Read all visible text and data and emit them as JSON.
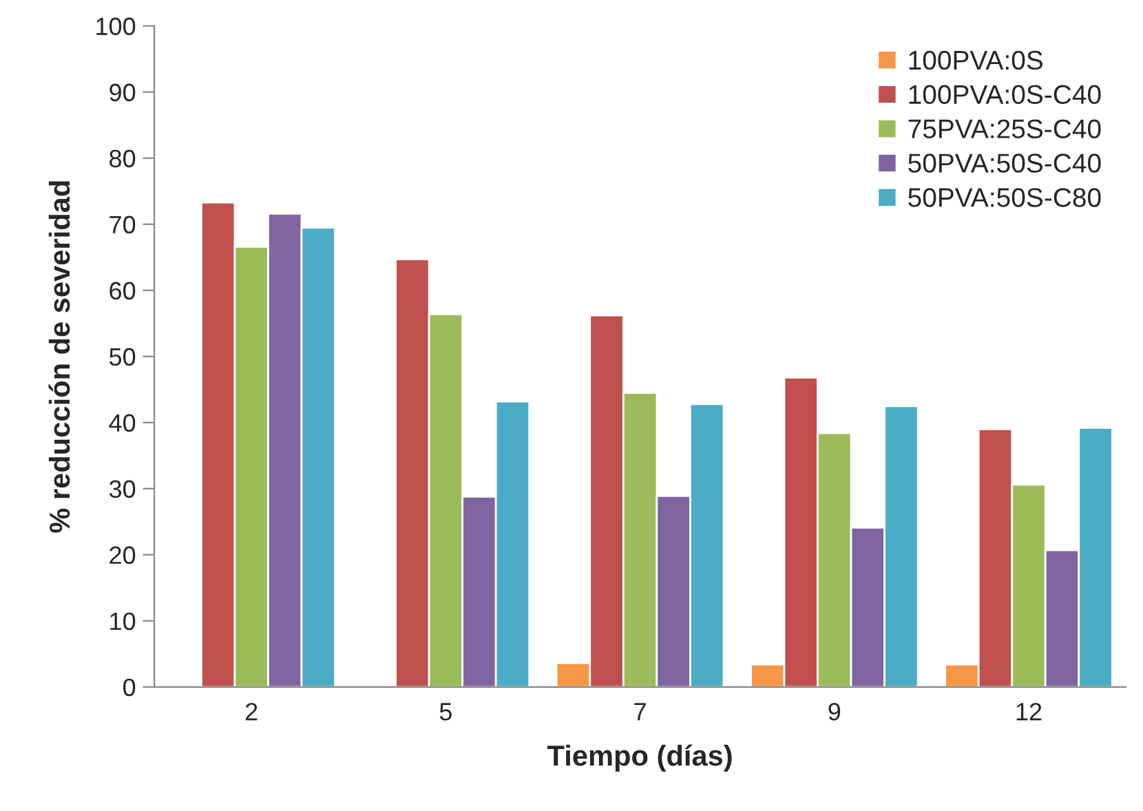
{
  "chart_data": {
    "type": "bar",
    "xlabel": "Tiempo (días)",
    "ylabel": "% reducción de severidad",
    "categories": [
      "2",
      "5",
      "7",
      "9",
      "12"
    ],
    "series": [
      {
        "name": "100PVA:0S",
        "color": "#f79646",
        "values": [
          null,
          null,
          3.6,
          3.4,
          3.4
        ]
      },
      {
        "name": "100PVA:0S-C40",
        "color": "#c0504d",
        "values": [
          73.3,
          64.7,
          56.2,
          46.8,
          39.0
        ]
      },
      {
        "name": "75PVA:25S-C40",
        "color": "#9bbb59",
        "values": [
          66.6,
          56.4,
          44.5,
          38.4,
          30.6
        ]
      },
      {
        "name": "50PVA:50S-C40",
        "color": "#8064a2",
        "values": [
          71.6,
          28.8,
          28.9,
          24.1,
          20.7
        ]
      },
      {
        "name": "50PVA:50S-C80",
        "color": "#4bacc6",
        "values": [
          69.5,
          43.2,
          42.8,
          42.5,
          39.2
        ]
      }
    ],
    "ylim": [
      0,
      100
    ],
    "yticks": [
      0,
      10,
      20,
      30,
      40,
      50,
      60,
      70,
      80,
      90,
      100
    ],
    "grid": false,
    "legend": "top right"
  }
}
